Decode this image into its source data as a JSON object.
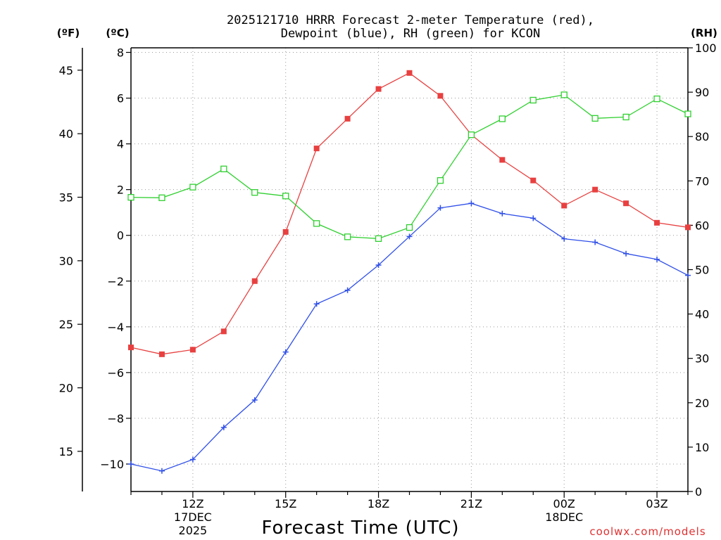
{
  "chart_data": {
    "type": "line",
    "title_line1": "2025121710 HRRR Forecast 2-meter Temperature (red),",
    "title_line2": "Dewpoint (blue), RH (green) for KCON",
    "left_outer_unit": "(ºF)",
    "left_inner_unit": "(ºC)",
    "right_unit": "(RH)",
    "xlabel": "Forecast Time (UTC)",
    "credit": "coolwx.com/models",
    "x_hours_from_10Z": [
      0,
      1,
      2,
      3,
      4,
      5,
      6,
      7,
      8,
      9,
      10,
      11,
      12,
      13,
      14,
      15,
      16,
      17,
      18
    ],
    "xlim": [
      0,
      18
    ],
    "x_ticks": [
      {
        "x": 2,
        "label": "12Z",
        "sub1": "17DEC",
        "sub2": "2025"
      },
      {
        "x": 5,
        "label": "15Z",
        "sub1": "",
        "sub2": ""
      },
      {
        "x": 8,
        "label": "18Z",
        "sub1": "",
        "sub2": ""
      },
      {
        "x": 11,
        "label": "21Z",
        "sub1": "",
        "sub2": ""
      },
      {
        "x": 14,
        "label": "00Z",
        "sub1": "18DEC",
        "sub2": ""
      },
      {
        "x": 17,
        "label": "03Z",
        "sub1": "",
        "sub2": ""
      }
    ],
    "celsius_axis": {
      "ylim": [
        -11.2,
        8.2
      ],
      "ticks": [
        8,
        6,
        4,
        2,
        0,
        -2,
        -4,
        -6,
        -8,
        -10
      ],
      "tick_labels": [
        "8",
        "6",
        "4",
        "2",
        "0",
        "−2",
        "−4",
        "−6",
        "−8",
        "−10"
      ]
    },
    "fahrenheit_axis": {
      "ticks": [
        45,
        40,
        35,
        30,
        25,
        20,
        15
      ],
      "tick_labels": [
        "45",
        "40",
        "35",
        "30",
        "25",
        "20",
        "15"
      ]
    },
    "rh_axis": {
      "ylim": [
        0,
        100
      ],
      "ticks": [
        100,
        90,
        80,
        70,
        60,
        50,
        40,
        30,
        20,
        10,
        0
      ],
      "tick_labels": [
        "100",
        "90",
        "80",
        "70",
        "60",
        "50",
        "40",
        "30",
        "20",
        "10",
        "0"
      ]
    },
    "series": [
      {
        "name": "Temperature",
        "units": "C",
        "color": "#e84040",
        "marker": "filled-square",
        "values": [
          -4.9,
          -5.2,
          -5.0,
          -4.2,
          -2.0,
          0.15,
          3.8,
          5.1,
          6.4,
          7.1,
          6.1,
          4.4,
          3.3,
          2.4,
          1.3,
          2.0,
          1.4,
          0.55,
          0.35
        ]
      },
      {
        "name": "Dewpoint",
        "units": "C",
        "color": "#3050e8",
        "marker": "plus",
        "values": [
          -10.0,
          -10.3,
          -9.8,
          -8.4,
          -7.2,
          -5.1,
          -3.0,
          -2.4,
          -1.3,
          -0.05,
          1.2,
          1.4,
          0.95,
          0.75,
          -0.15,
          -0.3,
          -0.8,
          -1.05,
          -1.75
        ]
      },
      {
        "name": "RH",
        "units": "%",
        "color": "#30d030",
        "marker": "open-square",
        "values": [
          66.3,
          66.2,
          68.6,
          72.7,
          67.4,
          66.6,
          60.4,
          57.4,
          57.0,
          59.5,
          70.1,
          80.4,
          84.0,
          88.2,
          89.4,
          84.1,
          84.4,
          88.5,
          85.1
        ]
      }
    ]
  }
}
